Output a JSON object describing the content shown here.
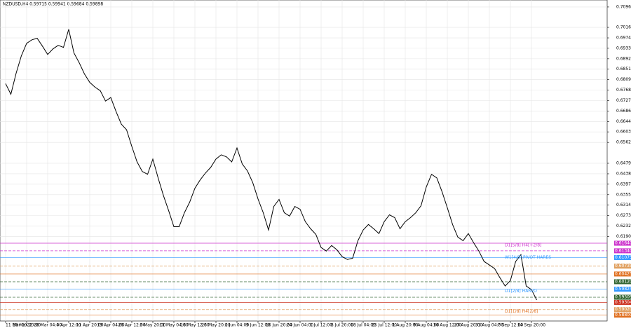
{
  "chart_data": {
    "type": "line",
    "title": "NZDUSD,H4  0.59715 0.59941 0.59684 0.59898",
    "categories": [
      "11 Mar 2022",
      null,
      null,
      null,
      "18 Mar 20:00",
      null,
      null,
      null,
      "28 Mar 04:00",
      null,
      null,
      null,
      "4 Apr 12:00",
      null,
      null,
      null,
      "11 Apr 20:00",
      null,
      null,
      null,
      "19 Apr 04:00",
      null,
      null,
      null,
      "26 Apr 12:00",
      null,
      null,
      null,
      "3 May 20:00",
      null,
      null,
      null,
      "11 May 04:00",
      null,
      null,
      null,
      "18 May 12:00",
      null,
      null,
      null,
      "25 May 20:00",
      null,
      null,
      null,
      "2 Jun 04:00",
      null,
      null,
      null,
      "9 Jun 12:00",
      null,
      null,
      null,
      "16 Jun 20:00",
      null,
      null,
      null,
      "24 Jun 04:00",
      null,
      null,
      null,
      "1 Jul 12:00",
      null,
      null,
      null,
      "8 Jul 20:00",
      null,
      null,
      null,
      "18 Jul 04:00",
      null,
      null,
      null,
      "25 Jul 12:00",
      null,
      null,
      null,
      "1 Aug 20:00",
      null,
      null,
      null,
      "9 Aug 04:00",
      null,
      null,
      null,
      "16 Aug 12:00",
      null,
      null,
      null,
      "23 Aug 20:00",
      null,
      null,
      null,
      "31 Aug 04:00",
      null,
      null,
      null,
      "7 Sep 12:00",
      null,
      null,
      null,
      "14 Sep 20:00",
      null
    ],
    "series": [
      {
        "color": "#000000",
        "values": [
          0.6794,
          0.6752,
          0.6835,
          0.6904,
          0.6953,
          0.6967,
          0.6973,
          0.6942,
          0.6909,
          0.6931,
          0.6945,
          0.6937,
          0.7008,
          0.6915,
          0.6876,
          0.6832,
          0.6799,
          0.678,
          0.6766,
          0.6725,
          0.6739,
          0.6684,
          0.6634,
          0.6612,
          0.6546,
          0.6485,
          0.6447,
          0.6436,
          0.6496,
          0.6422,
          0.6353,
          0.6293,
          0.6229,
          0.6229,
          0.6284,
          0.6326,
          0.6381,
          0.6414,
          0.6441,
          0.6463,
          0.6496,
          0.6513,
          0.6505,
          0.6485,
          0.654,
          0.6477,
          0.6449,
          0.6403,
          0.6339,
          0.6284,
          0.6216,
          0.6309,
          0.6337,
          0.6284,
          0.6271,
          0.6309,
          0.6298,
          0.6249,
          0.6221,
          0.6199,
          0.6147,
          0.6133,
          0.6155,
          0.6138,
          0.6111,
          0.61,
          0.6105,
          0.6174,
          0.6216,
          0.6238,
          0.6221,
          0.6202,
          0.6249,
          0.6276,
          0.6265,
          0.6221,
          0.6249,
          0.6265,
          0.6284,
          0.6312,
          0.6386,
          0.6436,
          0.6422,
          0.6367,
          0.6304,
          0.6238,
          0.6188,
          0.6174,
          0.6202,
          0.6166,
          0.6133,
          0.6092,
          0.6078,
          0.6064,
          0.6028,
          0.5995,
          0.6017,
          0.6092,
          0.6119,
          0.5995,
          0.5981,
          0.594
        ]
      }
    ],
    "ylim": [
      0.5857,
      0.7124
    ],
    "yticks": [
      {
        "value": 0.70965,
        "label": "0.70965"
      },
      {
        "value": 0.7016,
        "label": "0.70160"
      },
      {
        "value": 0.69745,
        "label": "0.69745"
      },
      {
        "value": 0.69335,
        "label": "0.69335"
      },
      {
        "value": 0.6892,
        "label": "0.68920"
      },
      {
        "value": 0.6851,
        "label": "0.68510"
      },
      {
        "value": 0.68095,
        "label": "0.68095"
      },
      {
        "value": 0.67685,
        "label": "0.67685"
      },
      {
        "value": 0.6727,
        "label": "0.67270"
      },
      {
        "value": 0.6686,
        "label": "0.66860"
      },
      {
        "value": 0.66445,
        "label": "0.66445"
      },
      {
        "value": 0.66035,
        "label": "0.66035"
      },
      {
        "value": 0.6562,
        "label": "0.65620"
      },
      {
        "value": 0.64795,
        "label": "0.64795"
      },
      {
        "value": 0.6438,
        "label": "0.64380"
      },
      {
        "value": 0.6397,
        "label": "0.63970"
      },
      {
        "value": 0.63555,
        "label": "0.63555"
      },
      {
        "value": 0.63145,
        "label": "0.63145"
      },
      {
        "value": 0.6273,
        "label": "0.62730"
      },
      {
        "value": 0.6232,
        "label": "0.62320"
      },
      {
        "value": 0.61905,
        "label": "0.61905"
      }
    ],
    "grid": true,
    "levels": [
      {
        "value": 0.6164,
        "label": "0.61640",
        "color": "#cc33cc"
      },
      {
        "value": 0.6134,
        "label": "0.61340",
        "color": "#cc33cc"
      },
      {
        "value": 0.61075,
        "label": "0.61075",
        "color": "#3399ff"
      },
      {
        "value": 0.60735,
        "label": "0.60735",
        "color": "#e0a060"
      },
      {
        "value": 0.60425,
        "label": "0.60425",
        "color": "#e07020"
      },
      {
        "value": 0.6012,
        "label": "0.60120",
        "color": "#336633"
      },
      {
        "value": 0.59824,
        "label": "0.59824",
        "color": "#3399ff"
      },
      {
        "value": 0.59509,
        "label": "0.59509",
        "color": "#336633"
      },
      {
        "value": 0.59304,
        "label": "0.59304",
        "color": "#cc3322"
      },
      {
        "value": 0.5902,
        "label": "0.59020",
        "color": "#e0a060"
      },
      {
        "value": 0.588,
        "label": "0.58800",
        "color": "#e07020"
      }
    ],
    "annotations": [
      "D1[5/8] H4[+2/8]",
      "W1[4/8] PIVOT HARES",
      "D1[2/8] HARVO",
      "D1[1/8] H4[2/8]"
    ]
  }
}
